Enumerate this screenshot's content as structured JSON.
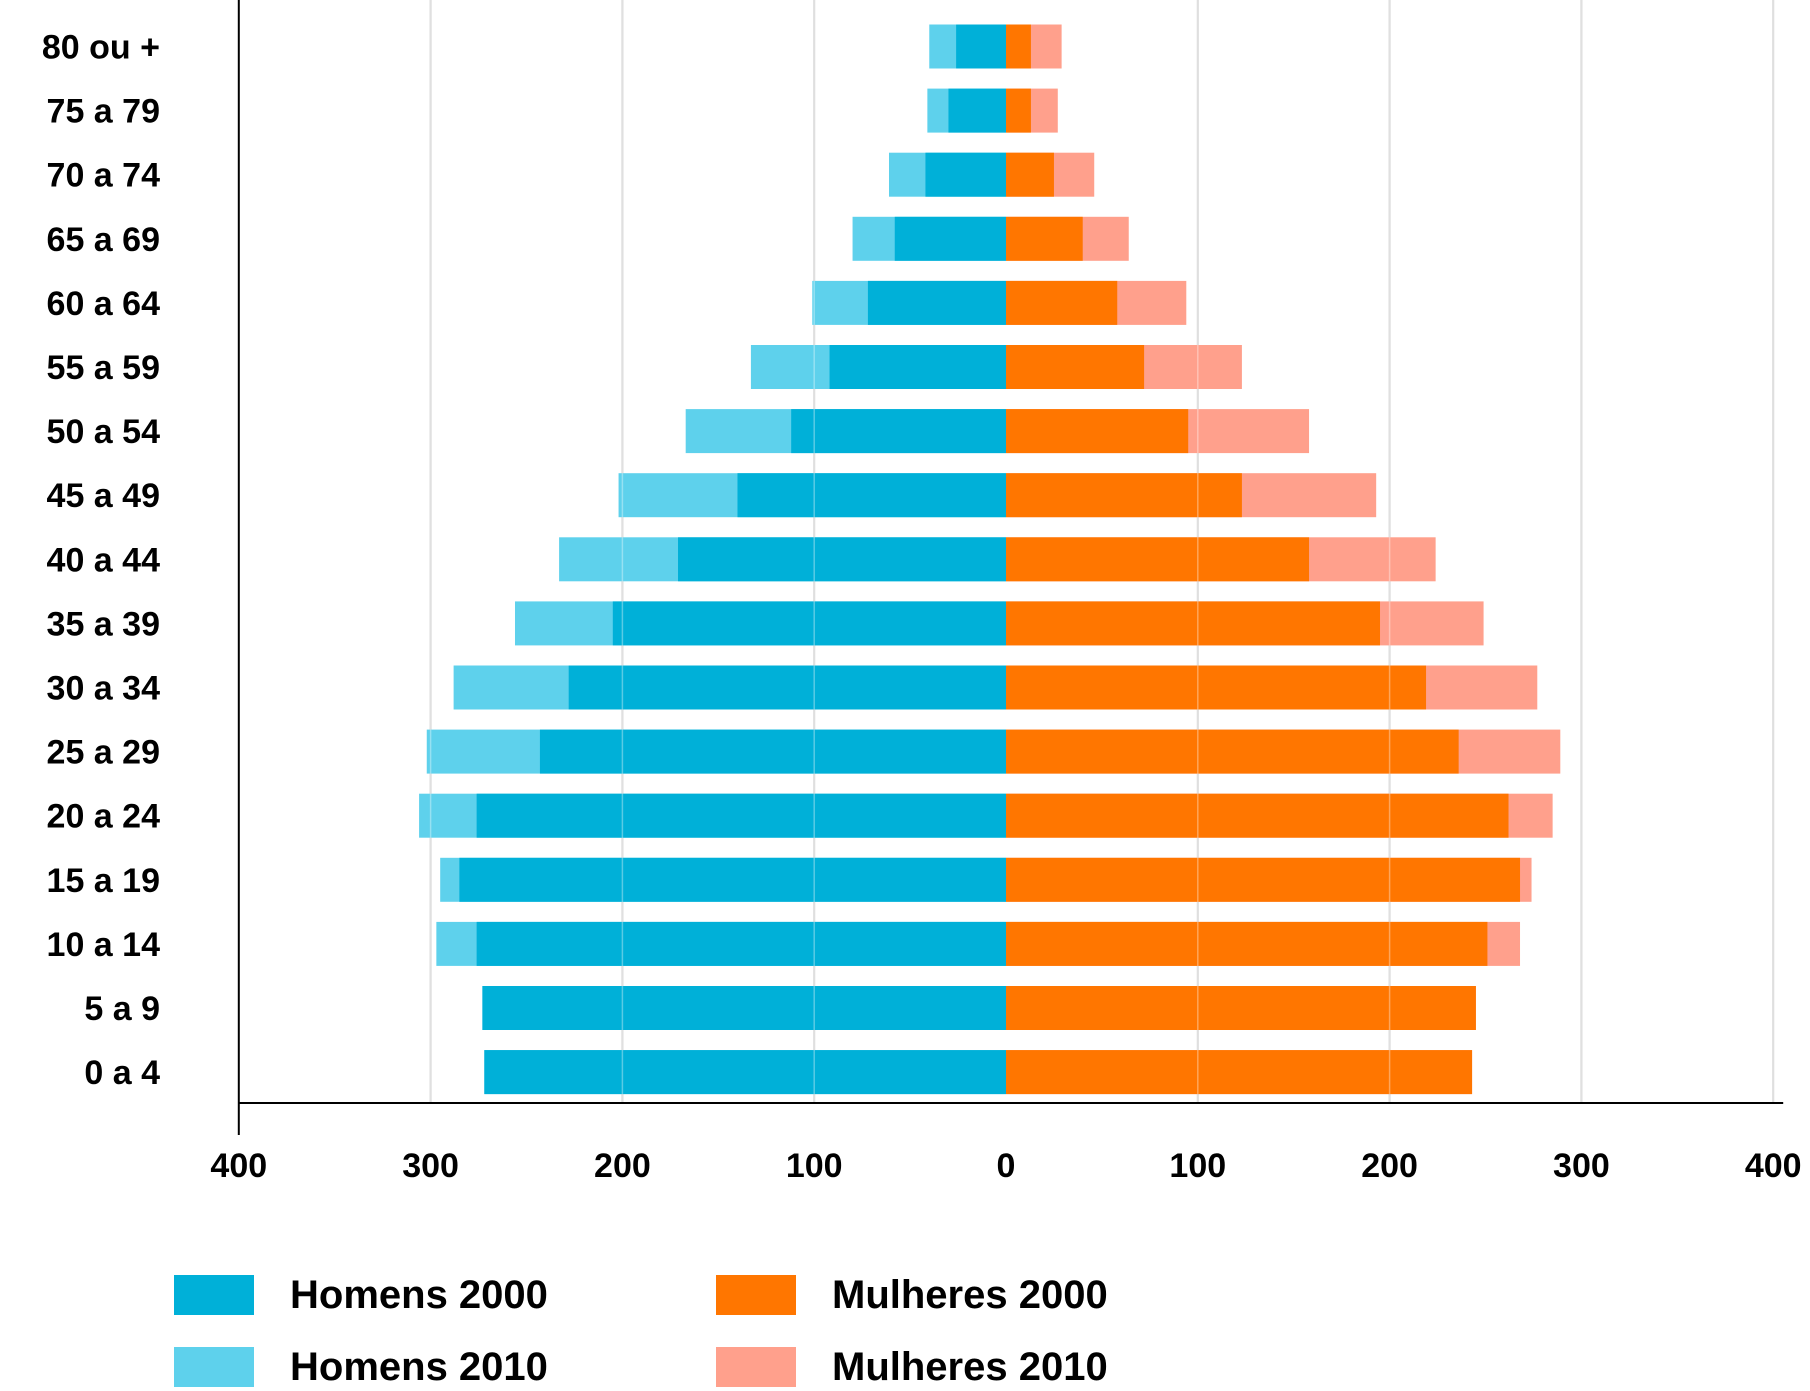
{
  "chart_data": {
    "type": "bar",
    "orientation": "horizontal-population-pyramid",
    "categories": [
      "80 ou +",
      "75 a 79",
      "70 a 74",
      "65 a 69",
      "60 a 64",
      "55 a 59",
      "50 a 54",
      "45 a 49",
      "40 a 44",
      "35 a 39",
      "30 a 34",
      "25 a 29",
      "20 a 24",
      "15 a 19",
      "10 a 14",
      "5 a 9",
      "0 a 4"
    ],
    "series": [
      {
        "name": "Homens 2000",
        "side": "left",
        "color": "#00b0d8",
        "values": [
          26,
          30,
          42,
          58,
          72,
          92,
          112,
          140,
          171,
          205,
          228,
          243,
          276,
          285,
          276,
          273,
          272
        ]
      },
      {
        "name": "Homens 2010",
        "side": "left",
        "color": "#5ed1ec",
        "values": [
          40,
          41,
          61,
          80,
          101,
          133,
          167,
          202,
          233,
          256,
          288,
          302,
          306,
          295,
          297,
          273,
          272
        ]
      },
      {
        "name": "Mulheres 2000",
        "side": "right",
        "color": "#ff7600",
        "values": [
          13,
          13,
          25,
          40,
          58,
          72,
          95,
          123,
          158,
          195,
          219,
          236,
          262,
          268,
          251,
          245,
          243
        ]
      },
      {
        "name": "Mulheres 2010",
        "side": "right",
        "color": "#ffa08c",
        "values": [
          29,
          27,
          46,
          64,
          94,
          123,
          158,
          193,
          224,
          249,
          277,
          289,
          285,
          274,
          268,
          245,
          243
        ]
      }
    ],
    "xticks": [
      "400",
      "300",
      "200",
      "100",
      "0",
      "100",
      "200",
      "300",
      "400"
    ],
    "xlim": [
      -400,
      400
    ],
    "grid": true,
    "legend_position": "bottom"
  }
}
